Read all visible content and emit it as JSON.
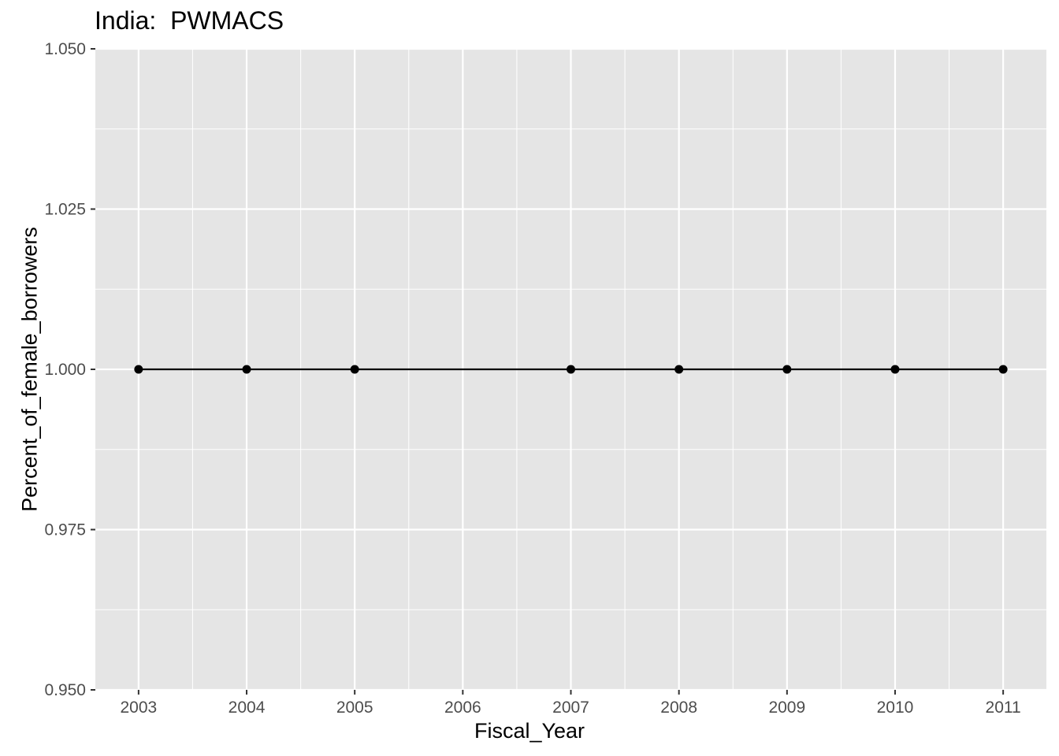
{
  "chart_data": {
    "type": "line",
    "title": "India:  PWMACS",
    "xlabel": "Fiscal_Year",
    "ylabel": "Percent_of_female_borrowers",
    "x_ticks": [
      2003,
      2004,
      2005,
      2006,
      2007,
      2008,
      2009,
      2010,
      2011
    ],
    "xlim": [
      2002.6,
      2011.4
    ],
    "y_ticks": [
      "0.950",
      "0.975",
      "1.000",
      "1.025",
      "1.050"
    ],
    "ylim": [
      0.95,
      1.05
    ],
    "grid": true,
    "panel_color": "#E5E5E5",
    "series": [
      {
        "color": "#000000",
        "x": [
          2003,
          2004,
          2005,
          2007,
          2008,
          2009,
          2010,
          2011
        ],
        "y": [
          1.0,
          1.0,
          1.0,
          1.0,
          1.0,
          1.0,
          1.0,
          1.0
        ]
      }
    ]
  }
}
